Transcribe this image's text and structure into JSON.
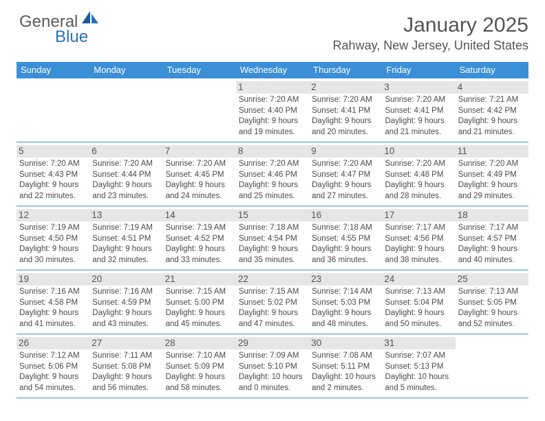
{
  "logo": {
    "text1": "General",
    "text2": "Blue"
  },
  "title": "January 2025",
  "location": "Rahway, New Jersey, United States",
  "colors": {
    "header_bg": "#3b8fd6",
    "header_text": "#ffffff",
    "daynum_bg": "#e6e6e6",
    "row_border": "#3b8fd6",
    "text": "#4a4a4a",
    "title_text": "#555555",
    "logo_accent": "#2a6fb5"
  },
  "day_headers": [
    "Sunday",
    "Monday",
    "Tuesday",
    "Wednesday",
    "Thursday",
    "Friday",
    "Saturday"
  ],
  "weeks": [
    [
      {
        "n": "",
        "empty": true
      },
      {
        "n": "",
        "empty": true
      },
      {
        "n": "",
        "empty": true
      },
      {
        "n": "1",
        "sunrise": "7:20 AM",
        "sunset": "4:40 PM",
        "daylight": "9 hours and 19 minutes."
      },
      {
        "n": "2",
        "sunrise": "7:20 AM",
        "sunset": "4:41 PM",
        "daylight": "9 hours and 20 minutes."
      },
      {
        "n": "3",
        "sunrise": "7:20 AM",
        "sunset": "4:41 PM",
        "daylight": "9 hours and 21 minutes."
      },
      {
        "n": "4",
        "sunrise": "7:21 AM",
        "sunset": "4:42 PM",
        "daylight": "9 hours and 21 minutes."
      }
    ],
    [
      {
        "n": "5",
        "sunrise": "7:20 AM",
        "sunset": "4:43 PM",
        "daylight": "9 hours and 22 minutes."
      },
      {
        "n": "6",
        "sunrise": "7:20 AM",
        "sunset": "4:44 PM",
        "daylight": "9 hours and 23 minutes."
      },
      {
        "n": "7",
        "sunrise": "7:20 AM",
        "sunset": "4:45 PM",
        "daylight": "9 hours and 24 minutes."
      },
      {
        "n": "8",
        "sunrise": "7:20 AM",
        "sunset": "4:46 PM",
        "daylight": "9 hours and 25 minutes."
      },
      {
        "n": "9",
        "sunrise": "7:20 AM",
        "sunset": "4:47 PM",
        "daylight": "9 hours and 27 minutes."
      },
      {
        "n": "10",
        "sunrise": "7:20 AM",
        "sunset": "4:48 PM",
        "daylight": "9 hours and 28 minutes."
      },
      {
        "n": "11",
        "sunrise": "7:20 AM",
        "sunset": "4:49 PM",
        "daylight": "9 hours and 29 minutes."
      }
    ],
    [
      {
        "n": "12",
        "sunrise": "7:19 AM",
        "sunset": "4:50 PM",
        "daylight": "9 hours and 30 minutes."
      },
      {
        "n": "13",
        "sunrise": "7:19 AM",
        "sunset": "4:51 PM",
        "daylight": "9 hours and 32 minutes."
      },
      {
        "n": "14",
        "sunrise": "7:19 AM",
        "sunset": "4:52 PM",
        "daylight": "9 hours and 33 minutes."
      },
      {
        "n": "15",
        "sunrise": "7:18 AM",
        "sunset": "4:54 PM",
        "daylight": "9 hours and 35 minutes."
      },
      {
        "n": "16",
        "sunrise": "7:18 AM",
        "sunset": "4:55 PM",
        "daylight": "9 hours and 36 minutes."
      },
      {
        "n": "17",
        "sunrise": "7:17 AM",
        "sunset": "4:56 PM",
        "daylight": "9 hours and 38 minutes."
      },
      {
        "n": "18",
        "sunrise": "7:17 AM",
        "sunset": "4:57 PM",
        "daylight": "9 hours and 40 minutes."
      }
    ],
    [
      {
        "n": "19",
        "sunrise": "7:16 AM",
        "sunset": "4:58 PM",
        "daylight": "9 hours and 41 minutes."
      },
      {
        "n": "20",
        "sunrise": "7:16 AM",
        "sunset": "4:59 PM",
        "daylight": "9 hours and 43 minutes."
      },
      {
        "n": "21",
        "sunrise": "7:15 AM",
        "sunset": "5:00 PM",
        "daylight": "9 hours and 45 minutes."
      },
      {
        "n": "22",
        "sunrise": "7:15 AM",
        "sunset": "5:02 PM",
        "daylight": "9 hours and 47 minutes."
      },
      {
        "n": "23",
        "sunrise": "7:14 AM",
        "sunset": "5:03 PM",
        "daylight": "9 hours and 48 minutes."
      },
      {
        "n": "24",
        "sunrise": "7:13 AM",
        "sunset": "5:04 PM",
        "daylight": "9 hours and 50 minutes."
      },
      {
        "n": "25",
        "sunrise": "7:13 AM",
        "sunset": "5:05 PM",
        "daylight": "9 hours and 52 minutes."
      }
    ],
    [
      {
        "n": "26",
        "sunrise": "7:12 AM",
        "sunset": "5:06 PM",
        "daylight": "9 hours and 54 minutes."
      },
      {
        "n": "27",
        "sunrise": "7:11 AM",
        "sunset": "5:08 PM",
        "daylight": "9 hours and 56 minutes."
      },
      {
        "n": "28",
        "sunrise": "7:10 AM",
        "sunset": "5:09 PM",
        "daylight": "9 hours and 58 minutes."
      },
      {
        "n": "29",
        "sunrise": "7:09 AM",
        "sunset": "5:10 PM",
        "daylight": "10 hours and 0 minutes."
      },
      {
        "n": "30",
        "sunrise": "7:08 AM",
        "sunset": "5:11 PM",
        "daylight": "10 hours and 2 minutes."
      },
      {
        "n": "31",
        "sunrise": "7:07 AM",
        "sunset": "5:13 PM",
        "daylight": "10 hours and 5 minutes."
      },
      {
        "n": "",
        "empty": true
      }
    ]
  ],
  "labels": {
    "sunrise": "Sunrise:",
    "sunset": "Sunset:",
    "daylight": "Daylight:"
  }
}
